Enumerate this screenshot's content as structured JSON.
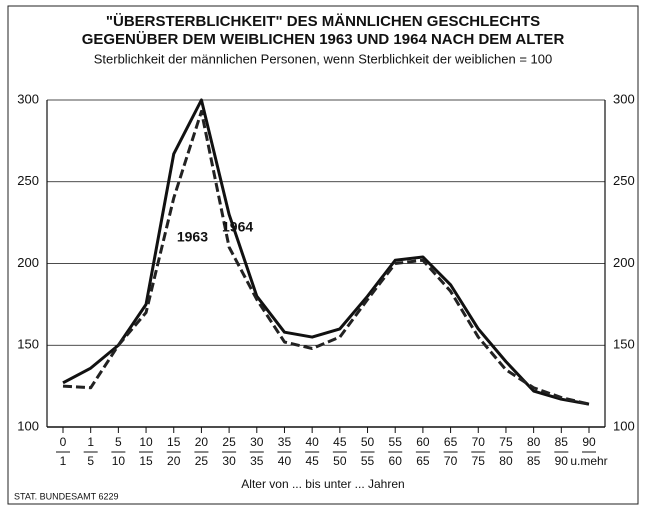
{
  "chart_data": {
    "type": "line",
    "title": [
      "\"ÜBERSTERBLICHKEIT\" DES MÄNNLICHEN GESCHLECHTS",
      "GEGENÜBER DEM WEIBLICHEN 1963 UND 1964 NACH DEM ALTER"
    ],
    "subtitle": "Sterblichkeit der männlichen Personen, wenn Sterblichkeit der weiblichen = 100",
    "x_label": "Alter von ... bis unter ... Jahren",
    "source": "STAT. BUNDESAMT 6229",
    "categories": [
      [
        "0",
        "1"
      ],
      [
        "1",
        "5"
      ],
      [
        "5",
        "10"
      ],
      [
        "10",
        "15"
      ],
      [
        "15",
        "20"
      ],
      [
        "20",
        "25"
      ],
      [
        "25",
        "30"
      ],
      [
        "30",
        "35"
      ],
      [
        "35",
        "40"
      ],
      [
        "40",
        "45"
      ],
      [
        "45",
        "50"
      ],
      [
        "50",
        "55"
      ],
      [
        "55",
        "60"
      ],
      [
        "60",
        "65"
      ],
      [
        "65",
        "70"
      ],
      [
        "70",
        "75"
      ],
      [
        "75",
        "80"
      ],
      [
        "80",
        "85"
      ],
      [
        "85",
        "90"
      ],
      [
        "90",
        "u.mehr"
      ]
    ],
    "series": [
      {
        "name": "1964",
        "color": "#111111",
        "dash": false,
        "values": [
          127,
          136,
          150,
          175,
          267,
          300,
          230,
          180,
          158,
          155,
          160,
          180,
          202,
          204,
          187,
          160,
          140,
          122,
          117,
          114
        ]
      },
      {
        "name": "1963",
        "color": "#222222",
        "dash": true,
        "values": [
          125,
          124,
          150,
          170,
          240,
          293,
          210,
          178,
          152,
          148,
          155,
          178,
          200,
          202,
          183,
          155,
          135,
          124,
          118,
          114
        ]
      }
    ],
    "ylim": [
      100,
      300
    ],
    "yticks": [
      100,
      150,
      200,
      250,
      300
    ],
    "grid": true
  }
}
